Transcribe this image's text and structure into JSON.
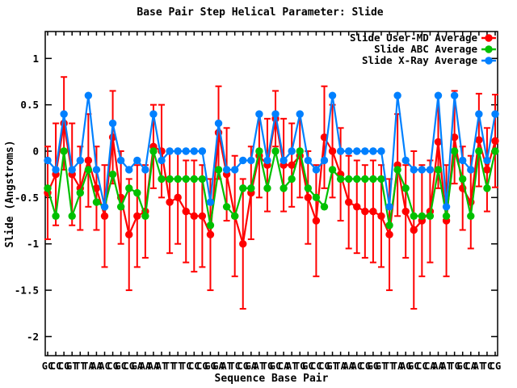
{
  "chart_data": {
    "type": "line",
    "title": "Base Pair Step Helical Parameter: Slide",
    "xlabel": "Sequence Base Pair",
    "ylabel": "Slide (Angstroms)",
    "ylim": [
      -2.2,
      1.3
    ],
    "yticks": [
      1,
      0.5,
      0,
      -0.5,
      -1,
      -1.5,
      -2
    ],
    "grid": false,
    "legend_position": "top-right-inside",
    "x_sequence": "GCCGTTAACGCGAAATTTCCGGATCGATGCATGCCGTAACGGTTAGCCAATGCATCG",
    "series": [
      {
        "name": "Slide User-MD Average",
        "color": "#ff0000",
        "marker": "circle",
        "values": [
          -0.45,
          -0.25,
          0.3,
          -0.25,
          -0.4,
          -0.1,
          -0.4,
          -0.7,
          0.15,
          -0.5,
          -0.9,
          -0.7,
          -0.65,
          0.05,
          0,
          -0.55,
          -0.5,
          -0.65,
          -0.7,
          -0.7,
          -0.9,
          0.2,
          -0.25,
          -0.7,
          -1.0,
          -0.45,
          -0.05,
          -0.15,
          0.35,
          -0.15,
          -0.15,
          -0.05,
          -0.5,
          -0.75,
          0.15,
          0,
          -0.25,
          -0.55,
          -0.6,
          -0.65,
          -0.65,
          -0.7,
          -0.9,
          -0.15,
          -0.65,
          -0.85,
          -0.75,
          -0.65,
          0.1,
          -0.75,
          0.15,
          -0.4,
          -0.55,
          0.12,
          -0.2,
          0.11
        ],
        "yerr": [
          0.5,
          0.55,
          0.5,
          0.55,
          0.45,
          0.5,
          0.45,
          0.55,
          0.5,
          0.5,
          0.6,
          0.55,
          0.5,
          0.45,
          0.5,
          0.55,
          0.5,
          0.55,
          0.6,
          0.55,
          0.6,
          0.5,
          0.5,
          0.65,
          0.7,
          0.5,
          0.45,
          0.5,
          0.3,
          0.5,
          0.45,
          0.45,
          0.5,
          0.6,
          0.55,
          0.5,
          0.5,
          0.5,
          0.5,
          0.5,
          0.55,
          0.55,
          0.6,
          0.55,
          0.5,
          0.85,
          0.6,
          0.55,
          0.5,
          0.6,
          0.5,
          0.45,
          0.5,
          0.5,
          0.45,
          0.5
        ]
      },
      {
        "name": "Slide ABC Average",
        "color": "#00c000",
        "marker": "circle",
        "values": [
          -0.4,
          -0.7,
          0,
          -0.7,
          -0.45,
          -0.2,
          -0.55,
          -0.6,
          -0.25,
          -0.6,
          -0.4,
          -0.45,
          -0.7,
          0,
          -0.3,
          -0.3,
          -0.3,
          -0.3,
          -0.3,
          -0.3,
          -0.8,
          -0.2,
          -0.6,
          -0.7,
          -0.4,
          -0.4,
          0,
          -0.4,
          0,
          -0.4,
          -0.3,
          0,
          -0.4,
          -0.5,
          -0.6,
          -0.2,
          -0.3,
          -0.3,
          -0.3,
          -0.3,
          -0.3,
          -0.3,
          -0.8,
          -0.2,
          -0.4,
          -0.7,
          -0.7,
          -0.7,
          -0.2,
          -0.7,
          0,
          -0.3,
          -0.7,
          0,
          -0.4,
          0
        ]
      },
      {
        "name": "Slide X-Ray Average",
        "color": "#0080ff",
        "marker": "circle",
        "values": [
          -0.1,
          -0.2,
          0.4,
          -0.2,
          -0.1,
          0.6,
          -0.2,
          -0.6,
          0.3,
          -0.1,
          -0.2,
          -0.1,
          -0.2,
          0.4,
          -0.1,
          0,
          0,
          0,
          0,
          0,
          -0.55,
          0.3,
          -0.2,
          -0.2,
          -0.1,
          -0.1,
          0.4,
          -0.1,
          0.4,
          -0.1,
          0,
          0.4,
          -0.1,
          -0.2,
          -0.1,
          0.6,
          0,
          0,
          0,
          0,
          0,
          0,
          -0.6,
          0.6,
          -0.1,
          -0.2,
          -0.2,
          -0.2,
          0.6,
          -0.6,
          0.6,
          -0.1,
          -0.2,
          0.4,
          -0.1,
          0.4
        ]
      }
    ]
  }
}
